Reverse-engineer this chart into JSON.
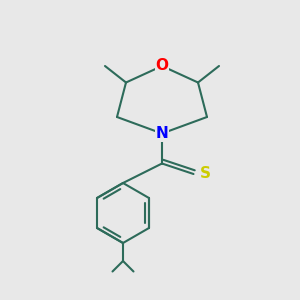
{
  "bg_color": "#e8e8e8",
  "bond_color": "#2d6b5a",
  "bond_width": 1.5,
  "o_color": "#ff0000",
  "n_color": "#0000ff",
  "s_color": "#cccc00",
  "font_size": 11,
  "fig_size": [
    3.0,
    3.0
  ],
  "dpi": 100,
  "o_label": "O",
  "n_label": "N",
  "s_label": "S"
}
